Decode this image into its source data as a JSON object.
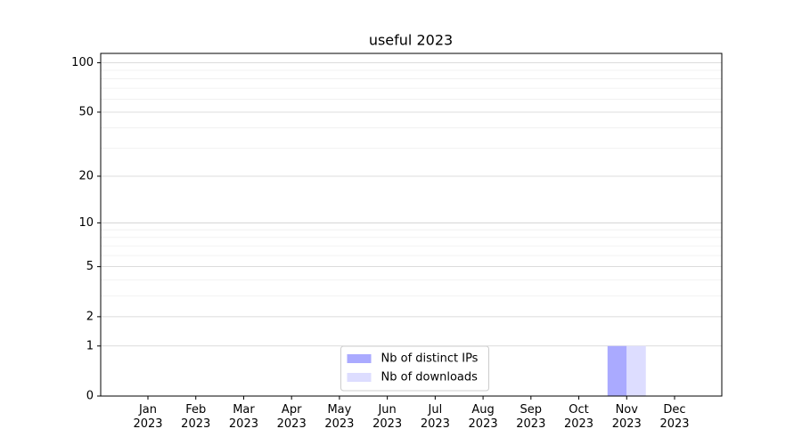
{
  "chart_data": {
    "type": "bar",
    "title": "useful 2023",
    "categories": [
      "Jan\n2023",
      "Feb\n2023",
      "Mar\n2023",
      "Apr\n2023",
      "May\n2023",
      "Jun\n2023",
      "Jul\n2023",
      "Aug\n2023",
      "Sep\n2023",
      "Oct\n2023",
      "Nov\n2023",
      "Dec\n2023"
    ],
    "series": [
      {
        "name": "Nb of distinct IPs",
        "color": "#aaaaff",
        "values": [
          0,
          0,
          0,
          0,
          0,
          0,
          0,
          0,
          0,
          0,
          1,
          0
        ]
      },
      {
        "name": "Nb of downloads",
        "color": "#ddddff",
        "values": [
          0,
          0,
          0,
          0,
          0,
          0,
          0,
          0,
          0,
          0,
          1,
          0
        ]
      }
    ],
    "yscale": "log1p",
    "ylim": [
      0,
      114
    ],
    "yticks": [
      0,
      1,
      2,
      5,
      10,
      20,
      50,
      100
    ],
    "minor_yticks": [
      3,
      4,
      6,
      7,
      8,
      9,
      30,
      40,
      60,
      70,
      80,
      90
    ],
    "grid": true,
    "legend": "lower center"
  }
}
